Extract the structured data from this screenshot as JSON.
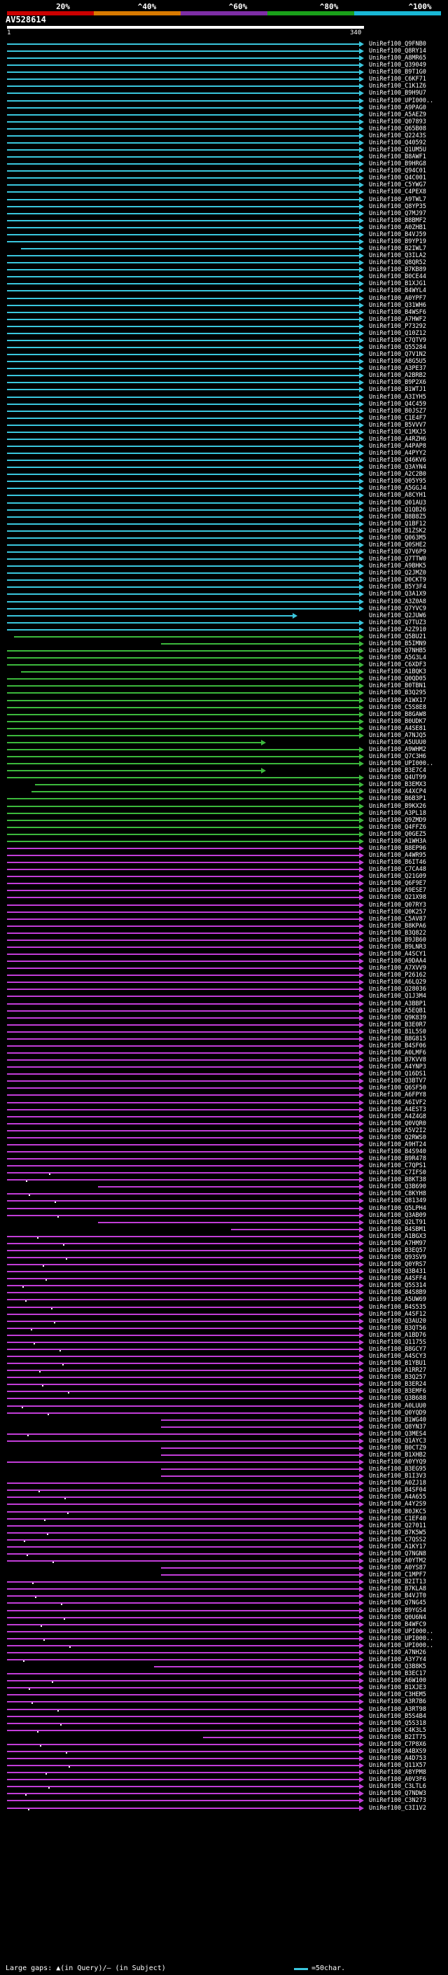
{
  "scale": {
    "labels": [
      "20%",
      "^40%",
      "^60%",
      "^80%",
      "^100%"
    ],
    "bands": [
      {
        "color": "#cc0000"
      },
      {
        "color": "#d97a00"
      },
      {
        "color": "#7e2ea6"
      },
      {
        "color": "#1aa11a"
      },
      {
        "color": "#19b8d6"
      }
    ]
  },
  "query": {
    "title": "AV528614",
    "start": "1",
    "end": "340"
  },
  "colors": {
    "cyan": "#3ac6dd",
    "green": "#3cb83c",
    "purple": "#c23dd8",
    "white": "#ffffff"
  },
  "hits": [
    "UniRef100_Q9FNB0",
    "UniRef100_Q8RY14",
    "UniRef100_A8MR65",
    "UniRef100_Q39049",
    "UniRef100_B9T1G0",
    "UniRef100_C6KF71",
    "UniRef100_C1K1Z6",
    "UniRef100_B9H9U7",
    "UniRef100_UPI000..",
    "UniRef100_A9PAG0",
    "UniRef100_A5AEZ9",
    "UniRef100_Q07893",
    "UniRef100_Q65B08",
    "UniRef100_Q2243S",
    "UniRef100_Q40592",
    "UniRef100_Q1UM5U",
    "UniRef100_B8AWF1",
    "UniRef100_B9HRG8",
    "UniRef100_Q94C01",
    "UniRef100_Q4C001",
    "UniRef100_C5YWG7",
    "UniRef100_C4PEX8",
    "UniRef100_A9TWL7",
    "UniRef100_Q8YP35",
    "UniRef100_Q7MJ97",
    "UniRef100_B8BMF2",
    "UniRef100_A0ZHB1",
    "UniRef100_B4VJ59",
    "UniRef100_B9YP19",
    "UniRef100_B2IWL7",
    "UniRef100_Q3ILA2",
    "UniRef100_Q8QR52",
    "UniRef100_B7KB89",
    "UniRef100_B0CE44",
    "UniRef100_B1XJG1",
    "UniRef100_B4WYL4",
    "UniRef100_A0YPF7",
    "UniRef100_Q31WH6",
    "UniRef100_B4WSF6",
    "UniRef100_A7HWF2",
    "UniRef100_P73292",
    "UniRef100_Q10Z12",
    "UniRef100_C7QTV9",
    "UniRef100_Q55284",
    "UniRef100_Q7V1N2",
    "UniRef100_A8G5U5",
    "UniRef100_A3PE37",
    "UniRef100_A2BRB2",
    "UniRef100_B9P2X6",
    "UniRef100_B1WTJ1",
    "UniRef100_A3IYH5",
    "UniRef100_Q4C459",
    "UniRef100_B0JSZ7",
    "UniRef100_C1E4F7",
    "UniRef100_B5VVV7",
    "UniRef100_C1MXJ5",
    "UniRef100_A4RZH6",
    "UniRef100_A4PAP8",
    "UniRef100_A4PYY2",
    "UniRef100_Q46KV6",
    "UniRef100_Q3AYN4",
    "UniRef100_A2C2B0",
    "UniRef100_Q05Y95",
    "UniRef100_A5GGJ4",
    "UniRef100_A8CYH1",
    "UniRef100_Q01AU3",
    "UniRef100_Q1QB26",
    "UniRef100_B8B8Z5",
    "UniRef100_Q1BF12",
    "UniRef100_B1ZSK2",
    "UniRef100_Q063M5",
    "UniRef100_Q0SHE2",
    "UniRef100_Q7V6P9",
    "UniRef100_Q7TTW0",
    "UniRef100_A9BHK5",
    "UniRef100_Q2JMZ0",
    "UniRef100_D0CKT9",
    "UniRef100_B5Y3F4",
    "UniRef100_Q3A1X9",
    "UniRef100_A3Z0A8",
    "UniRef100_Q7YVC9",
    "UniRef100_Q2JUW6",
    "UniRef100_Q7TUZ3",
    "UniRef100_A2Z910",
    "UniRef100_Q5BU21",
    "UniRef100_B5IMN9",
    "UniRef100_Q7NHB5",
    "UniRef100_A5G3L4",
    "UniRef100_C6XDF3",
    "UniRef100_A1BQK3",
    "UniRef100_Q0QD05",
    "UniRef100_B0TBN1",
    "UniRef100_B3Q295",
    "UniRef100_A1WX17",
    "UniRef100_C5S8E8",
    "UniRef100_B8GAW8",
    "UniRef100_B0UDK7",
    "UniRef100_A4SE81",
    "UniRef100_A7NJQ5",
    "UniRef100_A5UUU0",
    "UniRef100_A9WHM2",
    "UniRef100_Q7C3H6",
    "UniRef100_UPI000..",
    "UniRef100_B3E7C4",
    "UniRef100_Q4UT99",
    "UniRef100_B3EMX3",
    "UniRef100_A4XCP4",
    "UniRef100_B6B3P1",
    "UniRef100_B9KX26",
    "UniRef100_A3PL18",
    "UniRef100_Q9ZMD9",
    "UniRef100_Q4FFZ6",
    "UniRef100_Q0GEZ5",
    "UniRef100_A1WH3A",
    "UniRef100_B8EP96",
    "UniRef100_A4WR95",
    "UniRef100_B6IT46",
    "UniRef100_C7CA48",
    "UniRef100_Q21G09",
    "UniRef100_Q6F9E7",
    "UniRef100_A9ESE7",
    "UniRef100_Q21X98",
    "UniRef100_Q07RY3",
    "UniRef100_Q0K257",
    "UniRef100_C5AV87",
    "UniRef100_B8KPA6",
    "UniRef100_B3Q822",
    "UniRef100_B9JB60",
    "UniRef100_B9LNR3",
    "UniRef100_A4SCY1",
    "UniRef100_A9DAA4",
    "UniRef100_A7XVV9",
    "UniRef100_P26162",
    "UniRef100_A6LQ29",
    "UniRef100_Q28036",
    "UniRef100_Q1J3M4",
    "UniRef100_A3BBP1",
    "UniRef100_A5EQB1",
    "UniRef100_Q9K839",
    "UniRef100_B3E0R7",
    "UniRef100_B1L5S0",
    "UniRef100_B8G815",
    "UniRef100_B4SF06",
    "UniRef100_A0LMF6",
    "UniRef100_B7KVV8",
    "UniRef100_A4YNP3",
    "UniRef100_Q16DS1",
    "UniRef100_Q3BTV7",
    "UniRef100_Q6SF50",
    "UniRef100_A6FPY8",
    "UniRef100_A6IVF2",
    "UniRef100_A4EST3",
    "UniRef100_A4Z4G8",
    "UniRef100_Q0VQR0",
    "UniRef100_A5V2I2",
    "UniRef100_Q2RWS0",
    "UniRef100_A9HT24",
    "UniRef100_B4S940",
    "UniRef100_B9R478",
    "UniRef100_C7QPS1",
    "UniRef100_C7IFS0",
    "UniRef100_B8KT38",
    "UniRef100_Q3B690",
    "UniRef100_C8KYH8",
    "UniRef100_Q81349",
    "UniRef100_Q5LPH4",
    "UniRef100_Q3AB09",
    "UniRef100_Q2LT91",
    "UniRef100_B4SBM1",
    "UniRef100_A1BGX3",
    "UniRef100_A7HM97",
    "UniRef100_B3EQ57",
    "UniRef100_Q93SV9",
    "UniRef100_Q0YRS7",
    "UniRef100_Q3B431",
    "UniRef100_A4SFF4",
    "UniRef100_Q5S314",
    "UniRef100_B4S8B9",
    "UniRef100_A5UW69",
    "UniRef100_B4S535",
    "UniRef100_A4SF12",
    "UniRef100_Q3AU20",
    "UniRef100_B3QT56",
    "UniRef100_A1BD76",
    "UniRef100_Q1175S",
    "UniRef100_B8GCY7",
    "UniRef100_A4SCY3",
    "UniRef100_B1YBU1",
    "UniRef100_A1RR27",
    "UniRef100_B3Q257",
    "UniRef100_B3ER24",
    "UniRef100_B3EMF6",
    "UniRef100_Q3B688",
    "UniRef100_A0LUU0",
    "UniRef100_Q0YQD9",
    "UniRef100_B1WG40",
    "UniRef100_Q8YN37",
    "UniRef100_Q3MES4",
    "UniRef100_Q1AYC3",
    "UniRef100_B0CTZ9",
    "UniRef100_B1XHB2",
    "UniRef100_A0YYQ9",
    "UniRef100_B3EG95",
    "UniRef100_B1I3V3",
    "UniRef100_A0ZJ18",
    "UniRef100_B4SF04",
    "UniRef100_A4A655",
    "UniRef100_A4Y2S9",
    "UniRef100_B0JKC5",
    "UniRef100_C1EF40",
    "UniRef100_Q27011",
    "UniRef100_B7K5W5",
    "UniRef100_C7QSS2",
    "UniRef100_A1KY17",
    "UniRef100_Q7NGN8",
    "UniRef100_A0YTM2",
    "UniRef100_A0YS87",
    "UniRef100_C1MPF7",
    "UniRef100_B2IT13",
    "UniRef100_B7KLA8",
    "UniRef100_B4VJT0",
    "UniRef100_Q7NG45",
    "UniRef100_B9YGS4",
    "UniRef100_Q0U6N4",
    "UniRef100_B4WFC9",
    "UniRef100_UPI000..",
    "UniRef100_UPI000..",
    "UniRef100_UPI000..",
    "UniRef100_A7NH26",
    "UniRef100_A3Y7Y4",
    "UniRef100_Q3B8K5",
    "UniRef100_B3EC17",
    "UniRef100_A6W100",
    "UniRef100_B1XJE3",
    "UniRef100_C3HEM5",
    "UniRef100_A3R7B6",
    "UniRef100_A3RT98",
    "UniRef100_B5S4B4",
    "UniRef100_Q5S318",
    "UniRef100_C4K3L5",
    "UniRef100_B2IT75",
    "UniRef100_C7P8X6",
    "UniRef100_A4BXS9",
    "UniRef100_A4D753",
    "UniRef100_Q11X57",
    "UniRef100_A8YPM8",
    "UniRef100_A0V3F6",
    "UniRef100_C3LTL6",
    "UniRef100_Q7NDW3",
    "UniRef100_C3N273",
    "UniRef100_C3I1V2"
  ],
  "legend": {
    "left": "Large gaps: ▲(in Query)/– (in Subject)",
    "right": "=50char."
  }
}
